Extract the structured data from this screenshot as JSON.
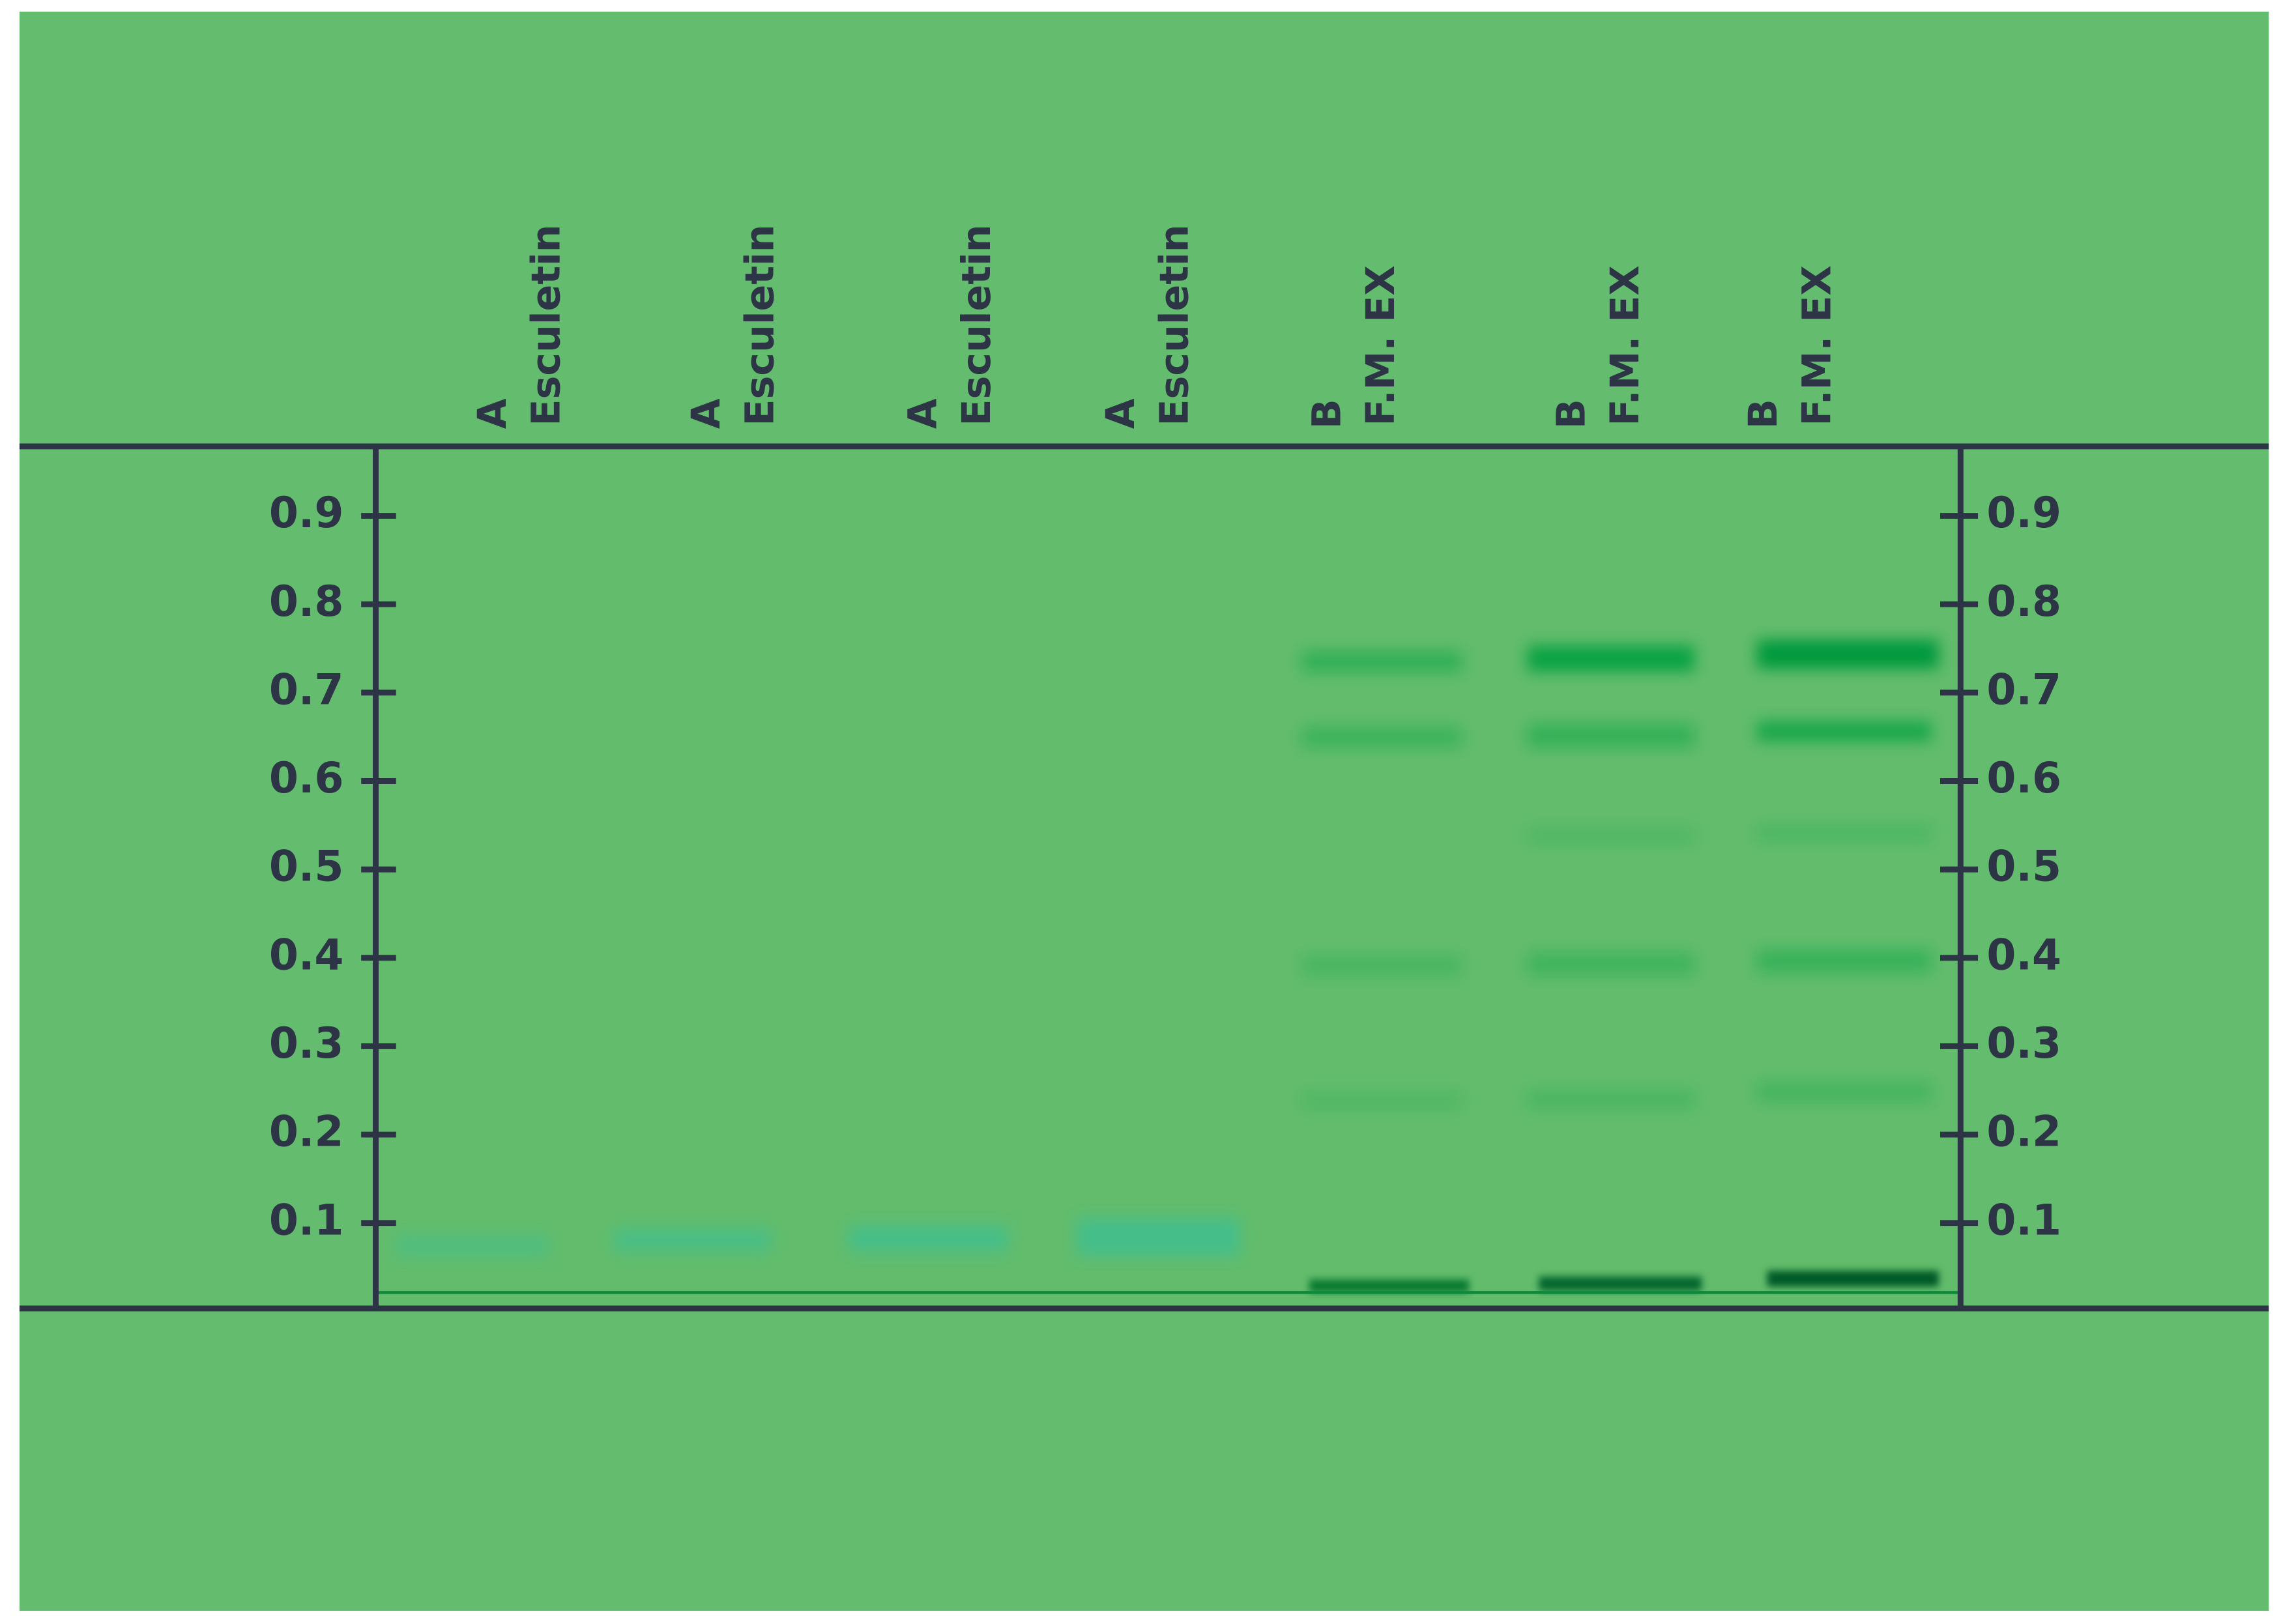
{
  "lanes": [
    {
      "label": "A",
      "sample": "Esculetin"
    },
    {
      "label": "A",
      "sample": "Esculetin"
    },
    {
      "label": "A",
      "sample": "Esculetin"
    },
    {
      "label": "A",
      "sample": "Esculetin"
    },
    {
      "label": "B",
      "sample": "F.M. EX"
    },
    {
      "label": "B",
      "sample": "F.M. EX"
    },
    {
      "label": "B",
      "sample": "F.M. EX"
    }
  ],
  "rf_scale": {
    "left": [
      0.9,
      0.8,
      0.7,
      0.6,
      0.5,
      0.4,
      0.3,
      0.2,
      0.1
    ],
    "right": [
      0.9,
      0.8,
      0.7,
      0.6,
      0.5,
      0.4,
      0.3,
      0.2,
      0.1
    ]
  }
}
